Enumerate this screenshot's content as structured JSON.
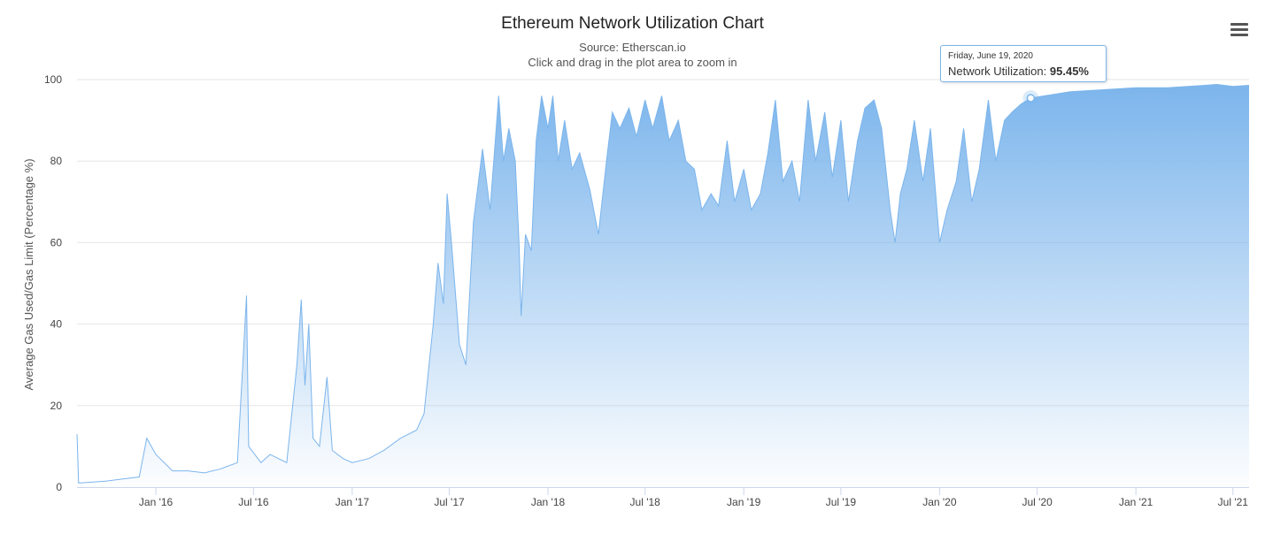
{
  "chart_data": {
    "type": "area",
    "title": "Ethereum Network Utilization Chart",
    "subtitle_source": "Source: Etherscan.io",
    "subtitle_hint": "Click and drag in the plot area to zoom in",
    "ylabel": "Average Gas Used/Gas Limit (Percentage %)",
    "xlabel": "",
    "ylim": [
      0,
      100
    ],
    "yticks": [
      0,
      20,
      40,
      60,
      80,
      100
    ],
    "xlim": [
      "2015-08-07",
      "2021-07-31"
    ],
    "xticks": [
      {
        "date": "2016-01-01",
        "label": "Jan '16"
      },
      {
        "date": "2016-07-01",
        "label": "Jul '16"
      },
      {
        "date": "2017-01-01",
        "label": "Jan '17"
      },
      {
        "date": "2017-07-01",
        "label": "Jul '17"
      },
      {
        "date": "2018-01-01",
        "label": "Jan '18"
      },
      {
        "date": "2018-07-01",
        "label": "Jul '18"
      },
      {
        "date": "2019-01-01",
        "label": "Jan '19"
      },
      {
        "date": "2019-07-01",
        "label": "Jul '19"
      },
      {
        "date": "2020-01-01",
        "label": "Jan '20"
      },
      {
        "date": "2020-07-01",
        "label": "Jul '20"
      },
      {
        "date": "2021-01-01",
        "label": "Jan '21"
      },
      {
        "date": "2021-07-01",
        "label": "Jul '21"
      }
    ],
    "series": [
      {
        "name": "Network Utilization",
        "color": "#7cb5ec",
        "points": [
          [
            "2015-08-07",
            13
          ],
          [
            "2015-08-10",
            1
          ],
          [
            "2015-09-01",
            1.2
          ],
          [
            "2015-10-01",
            1.5
          ],
          [
            "2015-11-01",
            2
          ],
          [
            "2015-12-01",
            2.5
          ],
          [
            "2015-12-15",
            12
          ],
          [
            "2016-01-01",
            8
          ],
          [
            "2016-02-01",
            4
          ],
          [
            "2016-03-01",
            4
          ],
          [
            "2016-04-01",
            3.5
          ],
          [
            "2016-05-01",
            4.5
          ],
          [
            "2016-06-01",
            6
          ],
          [
            "2016-06-18",
            47
          ],
          [
            "2016-06-22",
            10
          ],
          [
            "2016-07-15",
            6
          ],
          [
            "2016-08-01",
            8
          ],
          [
            "2016-09-01",
            6
          ],
          [
            "2016-09-20",
            30
          ],
          [
            "2016-09-28",
            46
          ],
          [
            "2016-10-05",
            25
          ],
          [
            "2016-10-12",
            40
          ],
          [
            "2016-10-20",
            12
          ],
          [
            "2016-11-01",
            10
          ],
          [
            "2016-11-15",
            27
          ],
          [
            "2016-11-25",
            9
          ],
          [
            "2016-12-15",
            7
          ],
          [
            "2017-01-01",
            6
          ],
          [
            "2017-02-01",
            7
          ],
          [
            "2017-03-01",
            9
          ],
          [
            "2017-04-01",
            12
          ],
          [
            "2017-05-01",
            14
          ],
          [
            "2017-05-15",
            18
          ],
          [
            "2017-06-01",
            40
          ],
          [
            "2017-06-10",
            55
          ],
          [
            "2017-06-20",
            45
          ],
          [
            "2017-06-27",
            72
          ],
          [
            "2017-07-05",
            60
          ],
          [
            "2017-07-20",
            35
          ],
          [
            "2017-08-01",
            30
          ],
          [
            "2017-08-15",
            65
          ],
          [
            "2017-09-01",
            83
          ],
          [
            "2017-09-15",
            68
          ],
          [
            "2017-10-01",
            96
          ],
          [
            "2017-10-10",
            80
          ],
          [
            "2017-10-20",
            88
          ],
          [
            "2017-11-01",
            80
          ],
          [
            "2017-11-08",
            60
          ],
          [
            "2017-11-12",
            42
          ],
          [
            "2017-11-20",
            62
          ],
          [
            "2017-12-01",
            58
          ],
          [
            "2017-12-10",
            85
          ],
          [
            "2017-12-20",
            96
          ],
          [
            "2018-01-01",
            88
          ],
          [
            "2018-01-10",
            96
          ],
          [
            "2018-01-20",
            80
          ],
          [
            "2018-02-01",
            90
          ],
          [
            "2018-02-15",
            78
          ],
          [
            "2018-03-01",
            82
          ],
          [
            "2018-03-20",
            73
          ],
          [
            "2018-04-05",
            62
          ],
          [
            "2018-04-20",
            80
          ],
          [
            "2018-05-01",
            92
          ],
          [
            "2018-05-15",
            88
          ],
          [
            "2018-06-01",
            93
          ],
          [
            "2018-06-15",
            86
          ],
          [
            "2018-07-01",
            95
          ],
          [
            "2018-07-15",
            88
          ],
          [
            "2018-08-01",
            96
          ],
          [
            "2018-08-15",
            85
          ],
          [
            "2018-09-01",
            90
          ],
          [
            "2018-09-15",
            80
          ],
          [
            "2018-10-01",
            78
          ],
          [
            "2018-10-15",
            68
          ],
          [
            "2018-11-01",
            72
          ],
          [
            "2018-11-15",
            69
          ],
          [
            "2018-12-01",
            85
          ],
          [
            "2018-12-15",
            70
          ],
          [
            "2019-01-01",
            78
          ],
          [
            "2019-01-15",
            68
          ],
          [
            "2019-02-01",
            72
          ],
          [
            "2019-02-15",
            82
          ],
          [
            "2019-03-01",
            95
          ],
          [
            "2019-03-15",
            75
          ],
          [
            "2019-04-01",
            80
          ],
          [
            "2019-04-15",
            70
          ],
          [
            "2019-05-01",
            95
          ],
          [
            "2019-05-15",
            80
          ],
          [
            "2019-06-01",
            92
          ],
          [
            "2019-06-15",
            76
          ],
          [
            "2019-07-01",
            90
          ],
          [
            "2019-07-15",
            70
          ],
          [
            "2019-08-01",
            85
          ],
          [
            "2019-08-15",
            93
          ],
          [
            "2019-09-01",
            95
          ],
          [
            "2019-09-15",
            88
          ],
          [
            "2019-10-01",
            68
          ],
          [
            "2019-10-10",
            60
          ],
          [
            "2019-10-20",
            72
          ],
          [
            "2019-11-01",
            78
          ],
          [
            "2019-11-15",
            90
          ],
          [
            "2019-12-01",
            75
          ],
          [
            "2019-12-15",
            88
          ],
          [
            "2020-01-01",
            60
          ],
          [
            "2020-01-15",
            68
          ],
          [
            "2020-02-01",
            75
          ],
          [
            "2020-02-15",
            88
          ],
          [
            "2020-03-01",
            70
          ],
          [
            "2020-03-15",
            78
          ],
          [
            "2020-04-01",
            95
          ],
          [
            "2020-04-15",
            80
          ],
          [
            "2020-05-01",
            90
          ],
          [
            "2020-05-15",
            92
          ],
          [
            "2020-06-01",
            94
          ],
          [
            "2020-06-19",
            95.45
          ],
          [
            "2020-07-15",
            96
          ],
          [
            "2020-09-01",
            97
          ],
          [
            "2020-11-01",
            97.5
          ],
          [
            "2021-01-01",
            98
          ],
          [
            "2021-03-01",
            98
          ],
          [
            "2021-05-01",
            98.5
          ],
          [
            "2021-06-01",
            98.8
          ],
          [
            "2021-07-01",
            98.3
          ],
          [
            "2021-07-31",
            98.6
          ]
        ]
      }
    ],
    "tooltip": {
      "date": "Friday, June 19, 2020",
      "series_label": "Network Utilization:",
      "value": "95.45%",
      "x": "2020-06-19",
      "y": 95.45
    }
  },
  "colors": {
    "series": "#7cb5ec",
    "grid": "#e6e6e6",
    "axis": "#ccd6eb",
    "text": "#333333"
  },
  "menu_icon": "hamburger-menu-icon"
}
